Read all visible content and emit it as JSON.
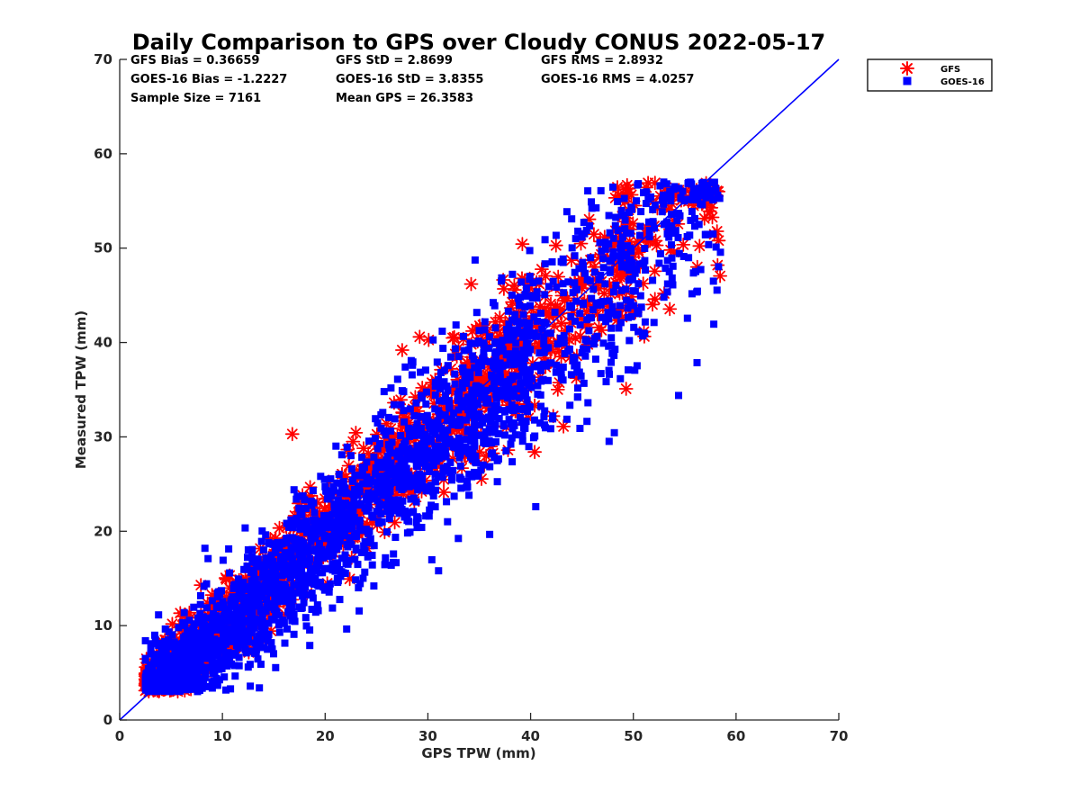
{
  "chart_data": {
    "type": "scatter",
    "title": "Daily Comparison to GPS over Cloudy CONUS 2022-05-17",
    "xlabel": "GPS TPW (mm)",
    "ylabel": "Measured TPW (mm)",
    "xlim": [
      0,
      70
    ],
    "ylim": [
      0,
      70
    ],
    "xticks": [
      "0",
      "10",
      "20",
      "30",
      "40",
      "50",
      "60",
      "70"
    ],
    "yticks": [
      "0",
      "10",
      "20",
      "30",
      "40",
      "50",
      "60",
      "70"
    ],
    "legend_position": "outside-top-right",
    "stats": {
      "gfs_bias": "GFS Bias = 0.36659",
      "gfs_std": "GFS StD = 2.8699",
      "gfs_rms": "GFS RMS = 2.8932",
      "goes_bias": "GOES-16 Bias = -1.2227",
      "goes_std": "GOES-16 StD = 3.8355",
      "goes_rms": "GOES-16 RMS = 4.0257",
      "sample_size": "Sample Size = 7161",
      "mean_gps": "Mean GPS = 26.3583"
    },
    "reference_line": {
      "name": "1:1 line",
      "x": [
        0,
        70
      ],
      "y": [
        0,
        70
      ],
      "color": "#0000ff"
    },
    "series": [
      {
        "name": "GFS",
        "marker": "asterisk",
        "color": "#ff0000",
        "sample_count": 7161,
        "generator": {
          "x_range": [
            2.5,
            58.5
          ],
          "slope": 1.0,
          "intercept": 0.37,
          "std": 2.87,
          "seed": 11,
          "n_render": 1400
        },
        "outliers": [
          [
            16.8,
            30.3
          ],
          [
            29.2,
            40.6
          ],
          [
            27.5,
            39.2
          ],
          [
            49.3,
            35.1
          ],
          [
            43.2,
            31.1
          ],
          [
            40.4,
            28.4
          ],
          [
            37.8,
            28.6
          ],
          [
            35.5,
            27.0
          ],
          [
            58.2,
            48.2
          ],
          [
            58.3,
            50.8
          ],
          [
            57.5,
            54.8
          ],
          [
            49.2,
            54.9
          ],
          [
            4.1,
            8.3
          ],
          [
            5.8,
            9.8
          ],
          [
            7.9,
            14.3
          ],
          [
            44.5,
            38.6
          ],
          [
            46.9,
            41.3
          ],
          [
            39.8,
            32.0
          ],
          [
            50.2,
            43.2
          ],
          [
            52.1,
            44.6
          ],
          [
            53.0,
            45.2
          ],
          [
            54.6,
            55.6
          ],
          [
            55.5,
            55.3
          ],
          [
            56.8,
            55.0
          ]
        ]
      },
      {
        "name": "GOES-16",
        "marker": "square",
        "color": "#0000ff",
        "sample_count": 7161,
        "generator": {
          "x_range": [
            2.5,
            58.5
          ],
          "slope": 0.975,
          "intercept": -0.6,
          "std": 3.84,
          "seed": 29,
          "n_render": 2600
        },
        "outliers": [
          [
            40.5,
            22.6
          ],
          [
            44.8,
            30.9
          ],
          [
            49.5,
            37.1
          ],
          [
            52.6,
            56.6
          ],
          [
            44.0,
            53.1
          ],
          [
            41.4,
            50.9
          ],
          [
            27.8,
            37.4
          ],
          [
            17.2,
            23.4
          ],
          [
            8.6,
            17.1
          ],
          [
            18.5,
            7.9
          ],
          [
            31.4,
            41.2
          ],
          [
            57.8,
            46.5
          ]
        ]
      }
    ]
  }
}
